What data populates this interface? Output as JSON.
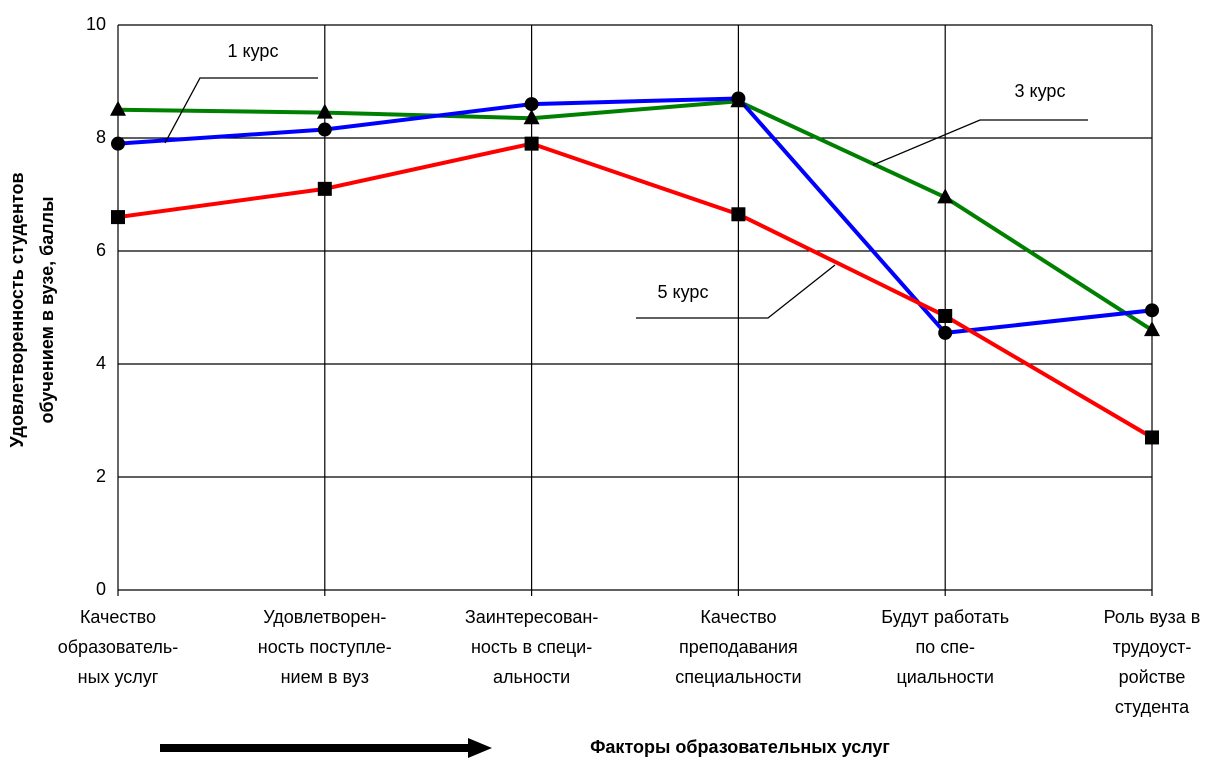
{
  "chart_data": {
    "type": "line",
    "ylabel": [
      "Удовлетворенность студентов",
      "обучением в вузе, баллы"
    ],
    "xlabel": "Факторы образовательных услуг",
    "categories": [
      [
        "Качество",
        "образователь-",
        "ных услуг"
      ],
      [
        "Удовлетворен-",
        "ность поступле-",
        "нием в вуз"
      ],
      [
        "Заинтересован-",
        "ность в специ-",
        "альности"
      ],
      [
        "Качество",
        "преподавания",
        "специальности"
      ],
      [
        "Будут работать",
        "по спе-",
        "циальности"
      ],
      [
        "Роль вуза в",
        "трудоуст-",
        "ройстве",
        "студента"
      ]
    ],
    "series": [
      {
        "name": "1 курс",
        "color": "#0000ff",
        "marker": "circle",
        "values": [
          7.9,
          8.15,
          8.6,
          8.7,
          4.55,
          4.95
        ]
      },
      {
        "name": "3 курс",
        "color": "#008000",
        "marker": "triangle",
        "values": [
          8.5,
          8.45,
          8.35,
          8.65,
          6.95,
          4.6
        ]
      },
      {
        "name": "5 курс",
        "color": "#ff0000",
        "marker": "square",
        "values": [
          6.6,
          7.1,
          7.9,
          6.65,
          4.85,
          2.7
        ]
      }
    ],
    "ylim": [
      0,
      10
    ],
    "yticks": [
      0,
      2,
      4,
      6,
      8,
      10
    ],
    "grid": true
  }
}
